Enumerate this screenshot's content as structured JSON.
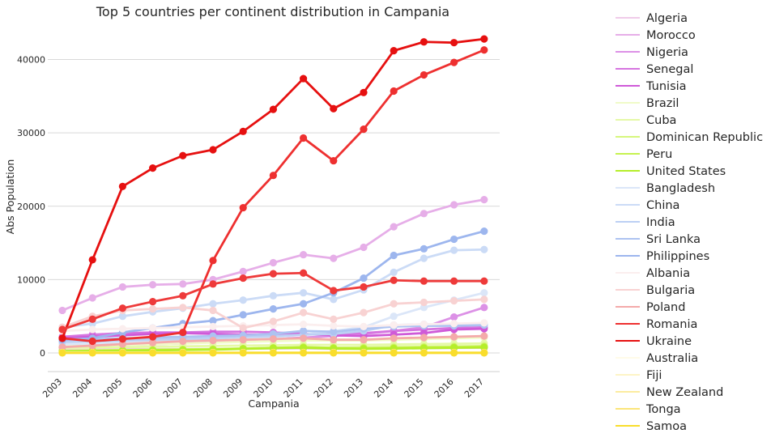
{
  "chart_data": {
    "type": "line",
    "title": "Top 5 countries per continent distribution in Campania",
    "xlabel": "Campania",
    "ylabel": "Abs Population",
    "x": [
      "2003",
      "2004",
      "2005",
      "2006",
      "2007",
      "2008",
      "2009",
      "2010",
      "2011",
      "2012",
      "2013",
      "2014",
      "2015",
      "2016",
      "2017"
    ],
    "ylim": [
      -2300,
      45000
    ],
    "yticks": [
      0,
      10000,
      20000,
      30000,
      40000
    ],
    "grid": "horizontal",
    "legend_position": "outside-right",
    "series": [
      {
        "name": "Algeria",
        "color": "#f0cbe9",
        "values": [
          400,
          450,
          500,
          520,
          540,
          560,
          580,
          600,
          620,
          560,
          580,
          620,
          650,
          680,
          700
        ]
      },
      {
        "name": "Morocco",
        "color": "#e6aee8",
        "values": [
          5800,
          7500,
          9000,
          9300,
          9400,
          10000,
          11100,
          12300,
          13400,
          12900,
          14400,
          17200,
          19000,
          20200,
          20900
        ]
      },
      {
        "name": "Nigeria",
        "color": "#dc91e6",
        "values": [
          700,
          900,
          1100,
          1200,
          1300,
          1500,
          1700,
          1900,
          2100,
          2300,
          2600,
          3000,
          3500,
          4900,
          6200
        ]
      },
      {
        "name": "Senegal",
        "color": "#d675e0",
        "values": [
          2200,
          2500,
          2700,
          2800,
          2800,
          2900,
          2900,
          2800,
          2600,
          2600,
          2700,
          3000,
          3200,
          3400,
          3500
        ]
      },
      {
        "name": "Tunisia",
        "color": "#cf5ad8",
        "values": [
          2000,
          2200,
          2400,
          2600,
          2700,
          2600,
          2500,
          2500,
          2600,
          2400,
          2300,
          2500,
          2700,
          3200,
          3300
        ]
      },
      {
        "name": "Brazil",
        "color": "#f0fbc8",
        "values": [
          900,
          1000,
          1100,
          1200,
          1300,
          1400,
          1500,
          1600,
          1700,
          1700,
          1700,
          1800,
          1900,
          2000,
          2100
        ]
      },
      {
        "name": "Cuba",
        "color": "#e5f9a6",
        "values": [
          700,
          750,
          800,
          850,
          900,
          950,
          1000,
          1050,
          1100,
          1100,
          1100,
          1150,
          1200,
          1250,
          1300
        ]
      },
      {
        "name": "Dominican Republic",
        "color": "#d6f67d",
        "values": [
          300,
          350,
          400,
          450,
          500,
          550,
          600,
          700,
          700,
          700,
          750,
          800,
          850,
          900,
          950
        ]
      },
      {
        "name": "Peru",
        "color": "#c6f250",
        "values": [
          250,
          300,
          350,
          400,
          450,
          500,
          600,
          700,
          800,
          700,
          650,
          700,
          750,
          800,
          850
        ]
      },
      {
        "name": "United States",
        "color": "#b5ee2a",
        "values": [
          200,
          250,
          300,
          350,
          400,
          450,
          550,
          650,
          700,
          600,
          550,
          600,
          650,
          700,
          750
        ]
      },
      {
        "name": "Bangladesh",
        "color": "#dbe6f8",
        "values": [
          1200,
          1300,
          1400,
          1500,
          1600,
          1700,
          1900,
          2100,
          2500,
          3000,
          3500,
          5000,
          6200,
          7200,
          8200
        ]
      },
      {
        "name": "China",
        "color": "#cbdbf6",
        "values": [
          3500,
          4000,
          5000,
          5600,
          6100,
          6700,
          7200,
          7800,
          8200,
          7300,
          8600,
          11000,
          12900,
          14000,
          14100
        ]
      },
      {
        "name": "India",
        "color": "#bcd0f4",
        "values": [
          1500,
          1600,
          1700,
          1800,
          1900,
          2000,
          2200,
          2300,
          2500,
          2600,
          3000,
          3800,
          3900,
          3900,
          3900
        ]
      },
      {
        "name": "Sri Lanka",
        "color": "#adc3f1",
        "values": [
          1800,
          1900,
          2000,
          2100,
          2200,
          2300,
          2400,
          2600,
          3000,
          2900,
          3300,
          3600,
          3700,
          3700,
          3800
        ]
      },
      {
        "name": "Philippines",
        "color": "#9db6ee",
        "values": [
          1800,
          2000,
          2800,
          3400,
          4000,
          4400,
          5200,
          6000,
          6700,
          8200,
          10200,
          13300,
          14200,
          15500,
          16600
        ]
      },
      {
        "name": "Albania",
        "color": "#fbeeee",
        "values": [
          3000,
          3200,
          3300,
          3400,
          3500,
          3600,
          3700,
          3800,
          3900,
          3700,
          3600,
          3800,
          3900,
          4000,
          4100
        ]
      },
      {
        "name": "Bulgaria",
        "color": "#f8d2d2",
        "values": [
          3500,
          5000,
          5800,
          6000,
          6200,
          5800,
          3400,
          4300,
          5500,
          4600,
          5500,
          6700,
          6900,
          7100,
          7300
        ]
      },
      {
        "name": "Poland",
        "color": "#f4aaaa",
        "values": [
          800,
          1000,
          1200,
          1400,
          1600,
          1700,
          1800,
          1900,
          2000,
          1800,
          1800,
          2000,
          2100,
          2200,
          2300
        ]
      },
      {
        "name": "Romania",
        "color": "#ee3030",
        "values": [
          2000,
          1600,
          1900,
          2200,
          2800,
          12600,
          19800,
          24200,
          29300,
          26200,
          30500,
          35700,
          37900,
          39600,
          41300
        ]
      },
      {
        "name": "Ukraine",
        "color": "#e61010",
        "values": [
          2000,
          12700,
          22700,
          25200,
          26900,
          27700,
          30200,
          33200,
          37400,
          33300,
          35500,
          41200,
          42400,
          42300,
          42800
        ]
      },
      {
        "name": "Australia",
        "color": "#fffbe8",
        "values": [
          60,
          60,
          60,
          60,
          60,
          60,
          60,
          60,
          60,
          60,
          60,
          60,
          60,
          60,
          60
        ]
      },
      {
        "name": "Fiji",
        "color": "#fdf4c6",
        "values": [
          40,
          40,
          40,
          40,
          40,
          40,
          40,
          40,
          40,
          40,
          40,
          40,
          40,
          40,
          40
        ]
      },
      {
        "name": "New Zealand",
        "color": "#fceca0",
        "values": [
          30,
          30,
          30,
          30,
          30,
          30,
          30,
          30,
          30,
          30,
          30,
          30,
          30,
          30,
          30
        ]
      },
      {
        "name": "Tonga",
        "color": "#fbe579",
        "values": [
          20,
          20,
          20,
          20,
          20,
          20,
          20,
          20,
          20,
          20,
          20,
          20,
          20,
          20,
          20
        ]
      },
      {
        "name": "Samoa",
        "color": "#f9dd2c",
        "values": [
          10,
          10,
          10,
          10,
          10,
          10,
          10,
          10,
          10,
          10,
          10,
          10,
          10,
          10,
          10
        ]
      },
      {
        "name": "",
        "color": "#ee3a3a",
        "values": [
          3200,
          4600,
          6100,
          7000,
          7800,
          9400,
          10200,
          10800,
          10900,
          8500,
          9000,
          9900,
          9800,
          9800,
          9800
        ]
      }
    ]
  }
}
